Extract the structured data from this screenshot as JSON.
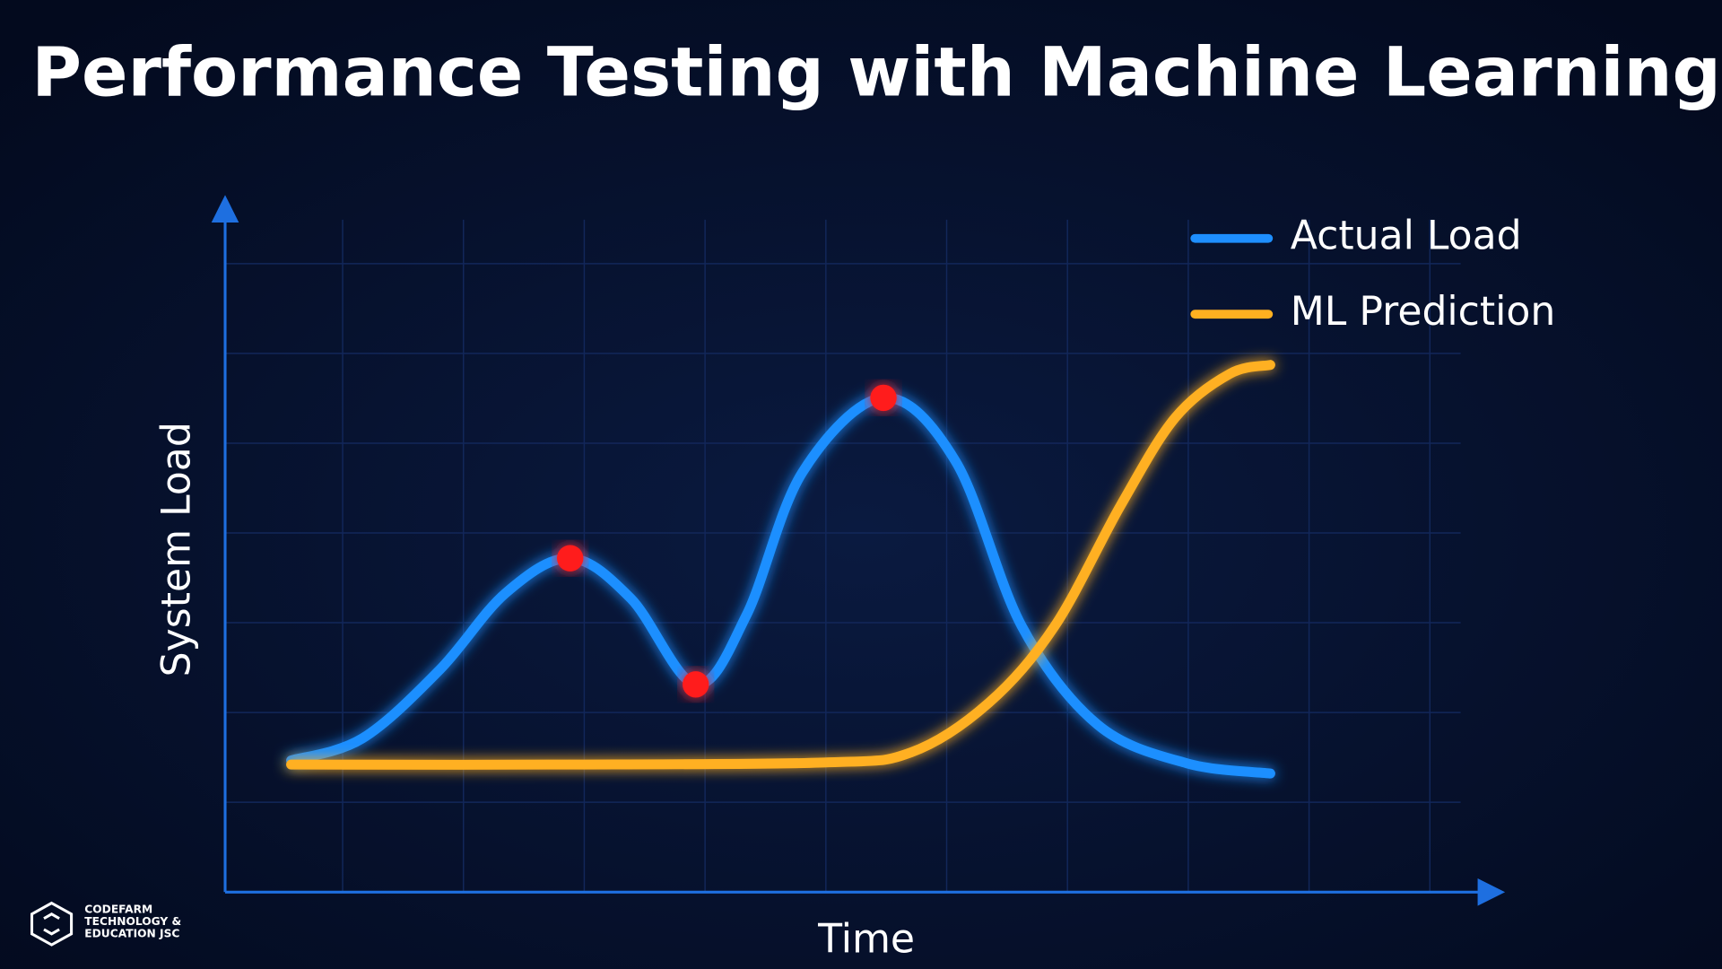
{
  "chart_data": {
    "type": "line",
    "title": "Performance Testing with Machine Learning",
    "xlabel": "Time",
    "ylabel": "System Load",
    "xlim": [
      0,
      100
    ],
    "ylim": [
      0,
      100
    ],
    "grid": true,
    "legend": "upper right",
    "series": [
      {
        "name": "Actual Load",
        "color": "#1e8fff",
        "x": [
          5.2,
          10.8,
          16.9,
          22.1,
          27.2,
          32.0,
          37.1,
          41.1,
          45.5,
          51.9,
          57.6,
          62.8,
          68.8,
          75.8,
          82.4
        ],
        "values": [
          19.2,
          22.4,
          32.4,
          43.6,
          48.7,
          42.8,
          30.3,
          40.4,
          61.2,
          72.1,
          62.8,
          38.8,
          24.4,
          18.8,
          17.3
        ]
      },
      {
        "name": "ML Prediction",
        "color": "#ffb020",
        "x": [
          5.2,
          25.5,
          47.2,
          54.1,
          60.2,
          65.4,
          70.6,
          74.9,
          79.2,
          82.4
        ],
        "values": [
          18.6,
          18.6,
          18.9,
          20.4,
          27.6,
          38.8,
          56.4,
          69.2,
          75.6,
          76.9
        ]
      }
    ],
    "anomalies": {
      "color": "#ff1a1a",
      "x": [
        27.2,
        37.1,
        51.9
      ],
      "values": [
        48.7,
        30.3,
        72.1
      ]
    }
  },
  "logo": [
    "CODEFARM",
    "TECHNOLOGY &",
    "EDUCATION JSC"
  ]
}
